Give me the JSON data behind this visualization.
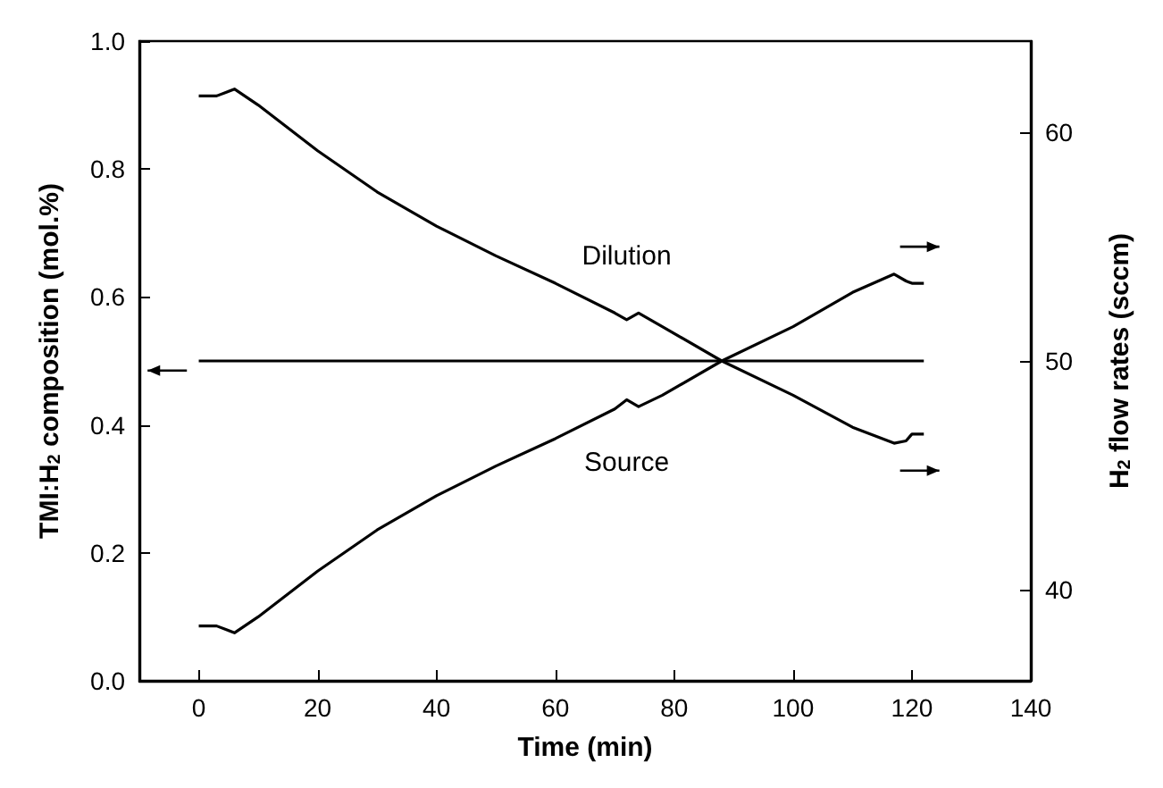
{
  "chart_data": {
    "type": "line",
    "xlabel": "Time (min)",
    "ylabel": "TMI:H$_{2}$ composition (mol.%)",
    "y2label": "H$_{2}$ flow rates (sccm)",
    "xlim": [
      -10,
      140
    ],
    "xticks": [
      0,
      20,
      40,
      60,
      80,
      100,
      120,
      140
    ],
    "ylim": [
      0,
      1
    ],
    "yticks": [
      {
        "value": 0,
        "label": "0.0"
      },
      {
        "value": 0.2,
        "label": "0.2"
      },
      {
        "value": 0.4,
        "label": "0.4"
      },
      {
        "value": 0.6,
        "label": "0.6"
      },
      {
        "value": 0.8,
        "label": "0.8"
      },
      {
        "value": 1,
        "label": "1.0"
      }
    ],
    "y2lim": [
      36,
      64
    ],
    "y2ticks": [
      40,
      50,
      60
    ],
    "grid": false,
    "marker": "none",
    "line_style": "solid",
    "series": [
      {
        "color": "#000000",
        "x": [
          0,
          122
        ],
        "values": [
          0.5,
          0.5
        ]
      },
      {
        "name": "Dilution",
        "color": "#000000",
        "axis": "y2",
        "x": [
          0,
          3,
          6,
          10,
          20,
          30,
          40,
          50,
          60,
          70,
          72,
          74,
          78,
          88,
          100,
          110,
          117,
          119,
          120,
          122
        ],
        "values": [
          61.6,
          61.6,
          61.9,
          61.2,
          59.2,
          57.4,
          55.9,
          54.6,
          53.4,
          52.1,
          51.8,
          52.1,
          51.5,
          50,
          48.5,
          47.1,
          46.4,
          46.5,
          46.8,
          46.8
        ]
      },
      {
        "name": "Source",
        "color": "#000000",
        "axis": "y2",
        "x": [
          0,
          3,
          6,
          10,
          20,
          30,
          40,
          50,
          60,
          70,
          72,
          74,
          78,
          88,
          100,
          110,
          117,
          119,
          120,
          122
        ],
        "values": [
          38.4,
          38.4,
          38.1,
          38.8,
          40.8,
          42.6,
          44.1,
          45.4,
          46.6,
          47.9,
          48.3,
          48.0,
          48.5,
          50,
          51.5,
          53.0,
          53.8,
          53.5,
          53.4,
          53.4
        ]
      }
    ]
  }
}
